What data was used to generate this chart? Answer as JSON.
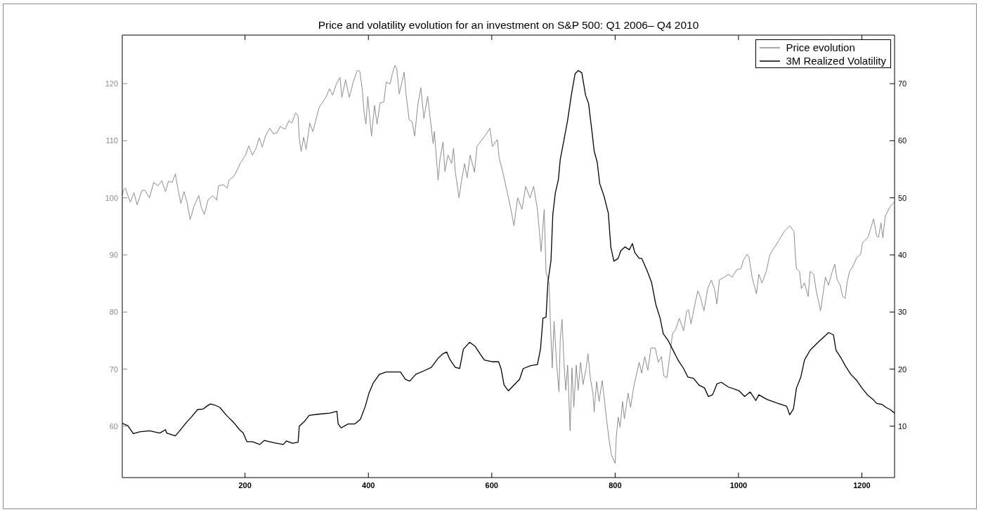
{
  "chart_data": {
    "type": "line",
    "title": "Price and volatility evolution for an investment on S&P 500: Q1 2006– Q4 2010",
    "xlim": [
      1,
      1253
    ],
    "xticks": [
      200,
      400,
      600,
      800,
      1000,
      1200
    ],
    "ylim": [
      51,
      128.5
    ],
    "yticks": [
      60,
      70,
      80,
      90,
      100,
      110,
      120
    ],
    "y2lim": [
      1,
      78.5
    ],
    "y2ticks": [
      10,
      20,
      30,
      40,
      50,
      60,
      70
    ],
    "legend": "top right",
    "series": [
      {
        "name": "Price evolution",
        "color": "#8c8c8c",
        "x": [
          1,
          3,
          6,
          14,
          20,
          25,
          33,
          38,
          45,
          52,
          59,
          65,
          71,
          76,
          82,
          87,
          91,
          96,
          101,
          106,
          111,
          117,
          125,
          129,
          134,
          140,
          148,
          154,
          157,
          165,
          171,
          174,
          182,
          188,
          193,
          201,
          206,
          212,
          218,
          223,
          228,
          233,
          240,
          246,
          252,
          257,
          265,
          271,
          276,
          282,
          286,
          288,
          291,
          295,
          299,
          305,
          310,
          314,
          320,
          325,
          331,
          337,
          342,
          348,
          354,
          357,
          363,
          369,
          376,
          382,
          386,
          390,
          393,
          396,
          399,
          405,
          410,
          414,
          419,
          425,
          429,
          435,
          439,
          443,
          446,
          450,
          454,
          458,
          461,
          466,
          471,
          475,
          480,
          485,
          490,
          496,
          500,
          505,
          507,
          513,
          516,
          521,
          524,
          529,
          535,
          538,
          541,
          547,
          551,
          556,
          560,
          565,
          572,
          576,
          583,
          590,
          597,
          601,
          609,
          612,
          619,
          626,
          631,
          636,
          642,
          649,
          655,
          662,
          668,
          674,
          680,
          685,
          688,
          693,
          695,
          698,
          701,
          705,
          709,
          711,
          714,
          717,
          720,
          723,
          727,
          730,
          733,
          737,
          740,
          744,
          748,
          753,
          756,
          760,
          764,
          766,
          770,
          774,
          779,
          783,
          786,
          790,
          794,
          800,
          802,
          805,
          808,
          812,
          815,
          821,
          825,
          830,
          834,
          839,
          843,
          848,
          853,
          858,
          865,
          870,
          875,
          879,
          884,
          889,
          893,
          898,
          904,
          911,
          916,
          919,
          923,
          929,
          934,
          938,
          944,
          950,
          956,
          961,
          965,
          969,
          977,
          984,
          990,
          997,
          1004,
          1008,
          1014,
          1017,
          1022,
          1029,
          1033,
          1038,
          1045,
          1051,
          1063,
          1074,
          1083,
          1090,
          1092,
          1094,
          1099,
          1102,
          1107,
          1113,
          1116,
          1122,
          1126,
          1131,
          1133,
          1137,
          1141,
          1146,
          1152,
          1156,
          1160,
          1165,
          1169,
          1173,
          1176,
          1180,
          1186,
          1192,
          1198,
          1201,
          1210,
          1219,
          1224,
          1227,
          1231,
          1234,
          1238,
          1246,
          1253
        ],
        "values": [
          100.5,
          101.3,
          101.7,
          99.2,
          100.9,
          98.8,
          101.3,
          101.3,
          100.0,
          102.7,
          102.1,
          103.0,
          101.1,
          102.9,
          102.7,
          104.2,
          101.7,
          99.0,
          101.1,
          99.2,
          96.2,
          98.4,
          100.4,
          98.4,
          97.1,
          99.6,
          100.4,
          99.6,
          102.1,
          102.3,
          101.7,
          103.1,
          103.8,
          105.0,
          106.2,
          107.5,
          109.1,
          107.5,
          108.7,
          110.5,
          108.9,
          110.8,
          112.2,
          111.2,
          111.4,
          112.5,
          112.0,
          113.5,
          113.1,
          114.9,
          114.3,
          110.4,
          108.1,
          110.6,
          108.5,
          113.1,
          111.6,
          113.3,
          115.8,
          116.6,
          117.6,
          119.1,
          118.0,
          119.9,
          121.1,
          117.6,
          120.7,
          117.6,
          120.5,
          122.3,
          122.2,
          119.1,
          114.9,
          112.9,
          117.8,
          110.8,
          116.2,
          112.9,
          116.6,
          116.8,
          120.3,
          119.9,
          121.8,
          123.2,
          122.6,
          118.2,
          120.1,
          122.0,
          118.2,
          113.7,
          113.3,
          110.8,
          116.2,
          119.3,
          113.9,
          117.8,
          114.1,
          109.5,
          111.6,
          103.1,
          106.7,
          109.8,
          104.6,
          107.5,
          106.0,
          108.7,
          104.5,
          100.0,
          103.0,
          106.0,
          103.5,
          107.5,
          104.5,
          109.0,
          110.0,
          111.0,
          112.2,
          109.0,
          110.2,
          107.0,
          104.0,
          100.5,
          98.0,
          95.1,
          100.0,
          98.0,
          102.0,
          100.0,
          102.0,
          98.0,
          90.6,
          98.0,
          86.9,
          85.1,
          78.2,
          70.2,
          78.4,
          71.2,
          66.0,
          75.2,
          78.7,
          71.2,
          66.3,
          70.7,
          59.2,
          70.2,
          63.3,
          70.7,
          66.3,
          71.2,
          67.3,
          70.2,
          72.7,
          68.3,
          65.8,
          62.5,
          67.8,
          64.3,
          68.0,
          64.3,
          61.3,
          57.8,
          55.0,
          53.5,
          58.3,
          61.6,
          59.8,
          64.3,
          61.3,
          65.8,
          63.3,
          66.8,
          68.8,
          71.2,
          69.3,
          72.2,
          69.8,
          73.7,
          73.7,
          71.2,
          72.2,
          68.8,
          68.5,
          72.7,
          76.2,
          76.9,
          78.9,
          76.7,
          80.2,
          80.4,
          77.9,
          81.2,
          83.7,
          82.7,
          80.2,
          84.1,
          85.6,
          84.1,
          81.4,
          85.6,
          86.1,
          86.6,
          86.1,
          87.4,
          87.6,
          89.1,
          90.1,
          89.6,
          86.1,
          83.2,
          86.6,
          85.1,
          87.1,
          90.1,
          92.1,
          94.1,
          95.1,
          94.1,
          90.1,
          87.6,
          87.1,
          84.1,
          85.1,
          82.7,
          87.1,
          86.6,
          83.7,
          81.2,
          80.2,
          83.2,
          86.1,
          84.7,
          87.1,
          88.4,
          85.6,
          84.7,
          82.7,
          82.4,
          85.1,
          87.1,
          88.1,
          89.6,
          90.1,
          92.1,
          93.1,
          96.3,
          93.3,
          93.1,
          95.6,
          93.0,
          96.8,
          98.5,
          99.3
        ]
      },
      {
        "name": "3M Realized Volatility",
        "color": "#000000",
        "axis": "y2",
        "x": [
          1,
          10,
          19,
          29,
          45,
          62,
          71,
          73,
          87,
          94,
          106,
          113,
          123,
          132,
          138,
          144,
          151,
          159,
          170,
          182,
          191,
          197,
          203,
          212,
          224,
          231,
          247,
          262,
          267,
          277,
          286,
          288,
          296,
          304,
          319,
          338,
          349,
          351,
          356,
          367,
          378,
          387,
          395,
          401,
          408,
          418,
          429,
          443,
          452,
          460,
          467,
          477,
          490,
          502,
          513,
          521,
          527,
          532,
          541,
          548,
          554,
          564,
          573,
          582,
          588,
          600,
          611,
          615,
          620,
          627,
          636,
          645,
          651,
          663,
          674,
          679,
          683,
          688,
          691,
          696,
          699,
          703,
          708,
          711,
          717,
          723,
          729,
          735,
          740,
          746,
          752,
          757,
          763,
          766,
          771,
          775,
          782,
          789,
          793,
          798,
          805,
          809,
          816,
          823,
          828,
          832,
          839,
          843,
          852,
          859,
          866,
          873,
          878,
          886,
          893,
          902,
          911,
          918,
          927,
          936,
          945,
          951,
          958,
          965,
          972,
          983,
          1001,
          1010,
          1019,
          1028,
          1033,
          1046,
          1064,
          1078,
          1083,
          1089,
          1094,
          1101,
          1107,
          1116,
          1127,
          1139,
          1146,
          1154,
          1158,
          1166,
          1173,
          1182,
          1191,
          1200,
          1209,
          1218,
          1224,
          1233,
          1239,
          1246,
          1253
        ],
        "values": [
          10.5,
          10.1,
          8.7,
          9.0,
          9.2,
          8.8,
          9.4,
          8.8,
          8.3,
          9.2,
          10.8,
          11.6,
          12.9,
          13.0,
          13.5,
          13.9,
          13.7,
          13.3,
          11.9,
          10.6,
          9.4,
          8.8,
          7.3,
          7.3,
          6.8,
          7.5,
          7.1,
          6.8,
          7.4,
          7.0,
          7.2,
          10.0,
          10.8,
          11.9,
          12.1,
          12.3,
          12.6,
          10.4,
          9.7,
          10.4,
          10.4,
          11.2,
          13.5,
          15.8,
          17.6,
          19.1,
          19.5,
          19.5,
          19.5,
          18.2,
          17.9,
          19.1,
          19.7,
          20.3,
          21.9,
          22.7,
          23.0,
          21.7,
          20.3,
          20.1,
          23.5,
          24.7,
          24.0,
          22.5,
          21.6,
          21.3,
          21.3,
          20.1,
          17.2,
          16.2,
          17.2,
          18.2,
          20.1,
          20.6,
          20.8,
          23.5,
          28.9,
          29.1,
          35.2,
          39.0,
          47.1,
          50.8,
          53.2,
          56.7,
          60.1,
          63.6,
          68.0,
          71.7,
          72.3,
          71.9,
          68.0,
          66.5,
          61.1,
          58.2,
          56.2,
          52.5,
          50.3,
          47.3,
          41.4,
          38.9,
          39.4,
          40.7,
          41.4,
          40.9,
          42.0,
          40.4,
          39.4,
          39.4,
          37.2,
          35.2,
          31.3,
          28.9,
          26.2,
          25.0,
          23.5,
          21.6,
          20.1,
          18.6,
          18.4,
          17.2,
          16.7,
          15.2,
          15.5,
          17.4,
          17.7,
          16.9,
          16.2,
          15.2,
          16.0,
          14.5,
          15.5,
          14.7,
          14.0,
          13.5,
          12.0,
          13.0,
          16.7,
          18.6,
          21.6,
          23.3,
          24.5,
          25.7,
          26.4,
          26.0,
          23.3,
          22.0,
          20.6,
          19.1,
          18.1,
          16.7,
          15.5,
          14.7,
          14.0,
          13.8,
          13.3,
          12.9,
          12.3
        ]
      }
    ]
  }
}
